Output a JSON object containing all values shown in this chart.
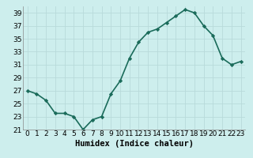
{
  "x": [
    0,
    1,
    2,
    3,
    4,
    5,
    6,
    7,
    8,
    9,
    10,
    11,
    12,
    13,
    14,
    15,
    16,
    17,
    18,
    19,
    20,
    21,
    22,
    23
  ],
  "y": [
    27,
    26.5,
    25.5,
    23.5,
    23.5,
    23,
    21,
    22.5,
    23,
    26.5,
    28.5,
    32,
    34.5,
    36,
    36.5,
    37.5,
    38.5,
    39.5,
    39,
    37,
    35.5,
    32,
    31,
    31.5
  ],
  "xlabel": "Humidex (Indice chaleur)",
  "line_color": "#1a6b5a",
  "marker": "D",
  "marker_size": 2.2,
  "background_color": "#cdeeed",
  "grid_color": "#b8dada",
  "ylim": [
    21,
    40
  ],
  "xlim": [
    -0.5,
    23.5
  ],
  "yticks": [
    21,
    23,
    25,
    27,
    29,
    31,
    33,
    35,
    37,
    39
  ],
  "xticks": [
    0,
    1,
    2,
    3,
    4,
    5,
    6,
    7,
    8,
    9,
    10,
    11,
    12,
    13,
    14,
    15,
    16,
    17,
    18,
    19,
    20,
    21,
    22,
    23
  ],
  "xlabel_fontsize": 7.5,
  "tick_fontsize": 6.5,
  "line_width": 1.2,
  "marker_color": "#1a6b5a"
}
